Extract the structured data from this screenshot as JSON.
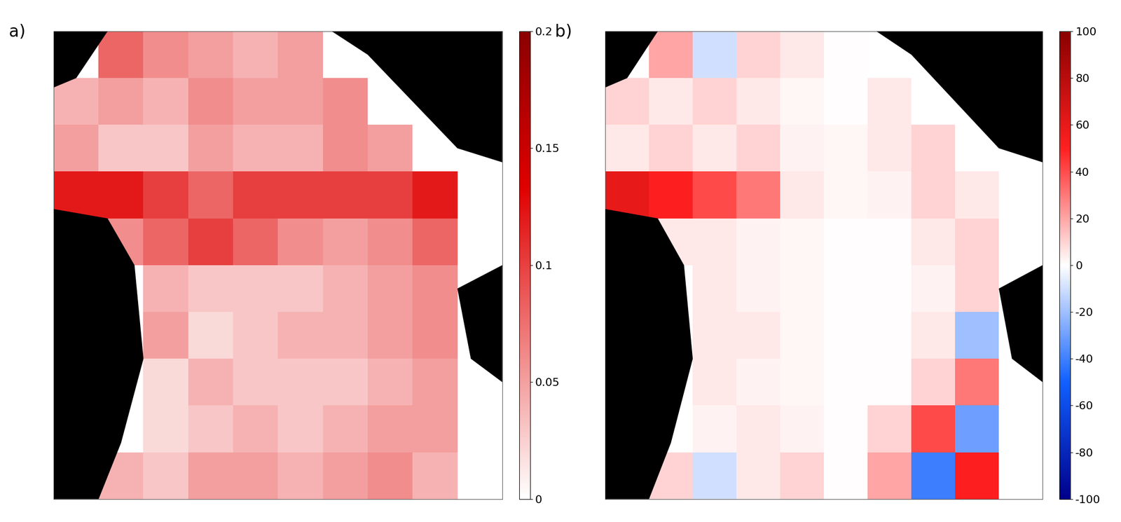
{
  "chart_data": [
    {
      "type": "heatmap",
      "title": "a)",
      "tick_labels": false,
      "cells": [
        [
          null,
          0.08,
          0.06,
          0.05,
          0.04,
          0.05,
          null,
          null,
          null,
          null
        ],
        [
          0.04,
          0.05,
          0.04,
          0.06,
          0.05,
          0.05,
          0.06,
          null,
          null,
          null
        ],
        [
          0.05,
          0.03,
          0.03,
          0.05,
          0.04,
          0.04,
          0.06,
          0.05,
          null,
          null
        ],
        [
          0.12,
          0.12,
          0.1,
          0.08,
          0.1,
          0.1,
          0.1,
          0.1,
          0.12,
          null
        ],
        [
          null,
          0.06,
          0.08,
          0.1,
          0.08,
          0.06,
          0.05,
          0.06,
          0.08,
          null
        ],
        [
          null,
          null,
          0.04,
          0.03,
          0.03,
          0.03,
          0.04,
          0.05,
          0.06,
          null
        ],
        [
          null,
          null,
          0.05,
          0.02,
          0.03,
          0.04,
          0.04,
          0.05,
          0.06,
          null
        ],
        [
          null,
          null,
          0.02,
          0.04,
          0.03,
          0.03,
          0.03,
          0.04,
          0.05,
          null
        ],
        [
          null,
          null,
          0.02,
          0.03,
          0.04,
          0.03,
          0.04,
          0.05,
          0.05,
          null
        ],
        [
          null,
          0.04,
          0.03,
          0.05,
          0.05,
          0.04,
          0.05,
          0.06,
          0.04,
          null
        ]
      ],
      "colorbar_range": [
        0,
        0.2
      ],
      "colorbar_ticks": [
        0,
        0.05,
        0.1,
        0.15,
        0.2
      ]
    },
    {
      "type": "heatmap",
      "title": "b)",
      "tick_labels": false,
      "cells": [
        [
          null,
          20,
          -10,
          10,
          5,
          0,
          null,
          null,
          null,
          null
        ],
        [
          10,
          5,
          10,
          5,
          2,
          0,
          5,
          null,
          null,
          null
        ],
        [
          5,
          10,
          5,
          10,
          3,
          2,
          5,
          10,
          null,
          null
        ],
        [
          60,
          50,
          40,
          30,
          5,
          2,
          3,
          10,
          5,
          null
        ],
        [
          null,
          5,
          5,
          3,
          2,
          0,
          0,
          5,
          10,
          null
        ],
        [
          null,
          null,
          5,
          3,
          2,
          0,
          0,
          3,
          10,
          null
        ],
        [
          null,
          null,
          5,
          5,
          2,
          0,
          0,
          5,
          -20,
          null
        ],
        [
          null,
          null,
          5,
          3,
          2,
          0,
          0,
          10,
          30,
          null
        ],
        [
          null,
          null,
          3,
          5,
          3,
          0,
          10,
          40,
          -30,
          null
        ],
        [
          null,
          10,
          -10,
          5,
          10,
          0,
          20,
          -40,
          50,
          null
        ]
      ],
      "colorbar_range": [
        -100,
        100
      ],
      "colorbar_ticks": [
        -100,
        -80,
        -60,
        -40,
        -20,
        0,
        20,
        40,
        60,
        80,
        100
      ]
    }
  ]
}
